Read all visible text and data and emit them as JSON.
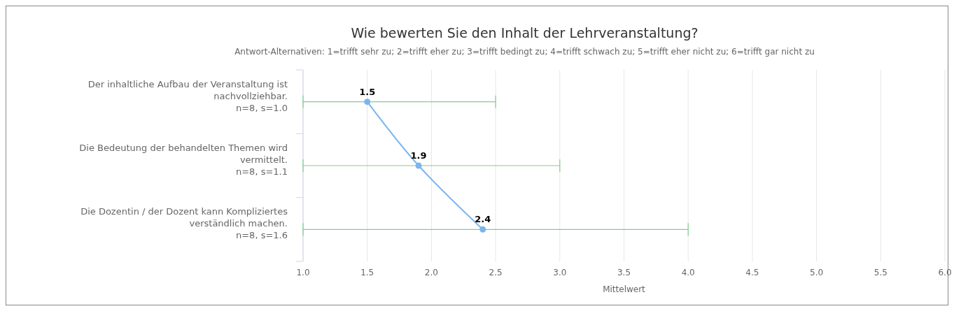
{
  "chart_data": {
    "type": "line",
    "orientation": "horizontal",
    "title": "Wie bewerten Sie den Inhalt der Lehrveranstaltung?",
    "subtitle": "Antwort-Alternativen: 1=trifft sehr zu; 2=trifft eher zu; 3=trifft bedingt zu; 4=trifft schwach zu; 5=trifft eher nicht zu; 6=trifft gar nicht zu",
    "xlabel": "Mittelwert",
    "categories": [
      "Der inhaltliche Aufbau der Veranstaltung ist\nnachvollziehbar.\nn=8, s=1.0",
      "Die Bedeutung der behandelten Themen wird\nvermittelt.\nn=8, s=1.1",
      "Die Dozentin / der Dozent kann Kompliziertes\nverständlich machen.\nn=8, s=1.6"
    ],
    "series": [
      {
        "color": "#7cb5ec",
        "values": [
          1.5,
          1.9,
          2.4
        ],
        "errors": [
          [
            1.0,
            2.5
          ],
          [
            1.0,
            3.0
          ],
          [
            1.0,
            4.0
          ]
        ]
      }
    ],
    "xlim": [
      1,
      6
    ],
    "xticks": [
      {
        "value": 1,
        "label": "1.0"
      },
      {
        "value": 1.5,
        "label": "1.5"
      },
      {
        "value": 2,
        "label": "2.0"
      },
      {
        "value": 2.5,
        "label": "2.5"
      },
      {
        "value": 3,
        "label": "3.0"
      },
      {
        "value": 3.5,
        "label": "3.5"
      },
      {
        "value": 4,
        "label": "4.0"
      },
      {
        "value": 4.5,
        "label": "4.5"
      },
      {
        "value": 5,
        "label": "5.0"
      },
      {
        "value": 5.5,
        "label": "5.5"
      },
      {
        "value": 6,
        "label": "6.0"
      }
    ],
    "grid": "x",
    "marker": "circle",
    "data_labels": true
  }
}
